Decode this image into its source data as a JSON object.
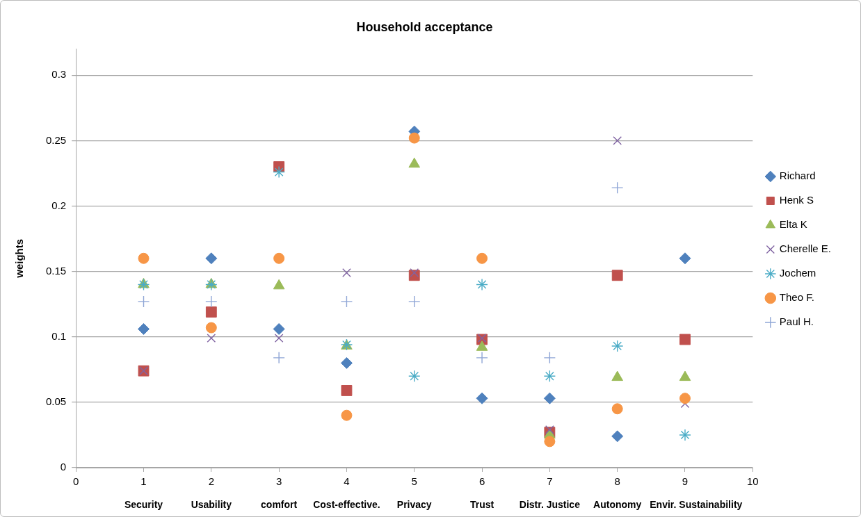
{
  "chart_data": {
    "type": "scatter",
    "title": "Household acceptance",
    "ylabel": "weights",
    "x": [
      1,
      2,
      3,
      4,
      5,
      6,
      7,
      8,
      9
    ],
    "xlim": [
      0,
      10
    ],
    "xticks": [
      0,
      1,
      2,
      3,
      4,
      5,
      6,
      7,
      8,
      9,
      10
    ],
    "ylim": [
      0,
      0.32
    ],
    "yticks": [
      0,
      0.05,
      0.1,
      0.15,
      0.2,
      0.25,
      0.3
    ],
    "grid": "y",
    "legend": "right",
    "annotations": [
      "Security",
      "Usability",
      "comfort",
      "Cost-effective.",
      "Privacy",
      "Trust",
      "Distr. Justice",
      "Autonomy",
      "Envir. Sustainability"
    ],
    "series": [
      {
        "name": "Richard",
        "color": "#4f81bd",
        "marker": "diamond",
        "values": [
          0.106,
          0.16,
          0.106,
          0.08,
          0.257,
          0.053,
          0.053,
          0.024,
          0.16
        ]
      },
      {
        "name": "Henk S",
        "color": "#c0504d",
        "marker": "square",
        "values": [
          0.074,
          0.119,
          0.23,
          0.059,
          0.147,
          0.098,
          0.027,
          0.147,
          0.098
        ]
      },
      {
        "name": "Elta K",
        "color": "#9bbb59",
        "marker": "triangle",
        "values": [
          0.14,
          0.14,
          0.139,
          0.093,
          0.232,
          0.092,
          0.025,
          0.069,
          0.069
        ]
      },
      {
        "name": "Cherelle E.",
        "color": "#8064a2",
        "marker": "x",
        "values": [
          0.074,
          0.099,
          0.099,
          0.149,
          0.149,
          0.099,
          0.029,
          0.25,
          0.049
        ]
      },
      {
        "name": "Jochem",
        "color": "#4bacc6",
        "marker": "cross",
        "values": [
          0.14,
          0.14,
          0.226,
          0.094,
          0.07,
          0.14,
          0.07,
          0.093,
          0.025
        ]
      },
      {
        "name": "Theo F.",
        "color": "#f79646",
        "marker": "circle",
        "values": [
          0.16,
          0.107,
          0.16,
          0.04,
          0.252,
          0.16,
          0.02,
          0.045,
          0.053
        ]
      },
      {
        "name": "Paul H.",
        "color": "#8fa6d6",
        "marker": "plus",
        "values": [
          0.127,
          0.127,
          0.084,
          0.127,
          0.127,
          0.084,
          0.084,
          0.214,
          null
        ]
      }
    ]
  }
}
